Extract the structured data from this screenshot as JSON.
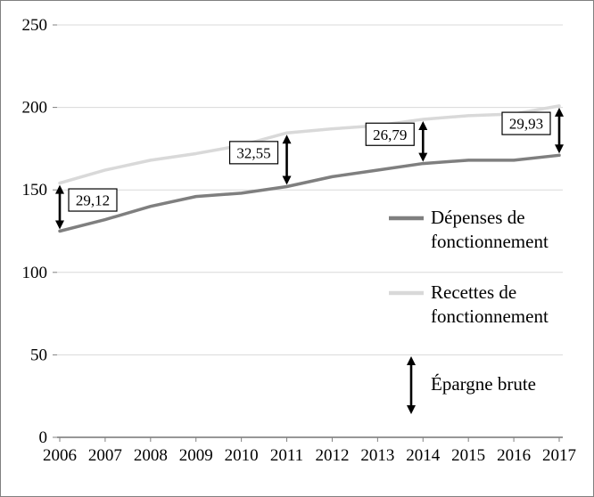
{
  "chart_data": {
    "type": "line",
    "title": "",
    "xlabel": "",
    "ylabel": "",
    "categories": [
      2006,
      2007,
      2008,
      2009,
      2010,
      2011,
      2012,
      2013,
      2014,
      2015,
      2016,
      2017
    ],
    "series": [
      {
        "name": "Dépenses de fonctionnement",
        "color": "#7f7f7f",
        "values": [
          125,
          132,
          140,
          146,
          148,
          152,
          158,
          162,
          166,
          168,
          168,
          171
        ]
      },
      {
        "name": "Recettes de fonctionnement",
        "color": "#d9d9d9",
        "values": [
          154.12,
          162,
          168,
          172,
          177,
          184.55,
          187,
          189,
          192.79,
          195,
          196,
          200.93
        ]
      }
    ],
    "annotations": [
      {
        "x": 2006,
        "label": "29,12",
        "side": "right"
      },
      {
        "x": 2011,
        "label": "32,55",
        "side": "left"
      },
      {
        "x": 2014,
        "label": "26,79",
        "side": "left"
      },
      {
        "x": 2017,
        "label": "29,93",
        "side": "left"
      }
    ],
    "legend": {
      "position": "inside-right",
      "items": [
        {
          "type": "line",
          "color": "#7f7f7f",
          "label": "Dépenses de fonctionnement"
        },
        {
          "type": "line",
          "color": "#d9d9d9",
          "label": "Recettes de fonctionnement"
        },
        {
          "type": "arrow",
          "label": "Épargne brute"
        }
      ]
    },
    "ylim": [
      0,
      250
    ],
    "yticks": [
      0,
      50,
      100,
      150,
      200,
      250
    ],
    "grid": true
  },
  "colors": {
    "grid": "#d9d9d9",
    "axis": "#808080",
    "axis_line": "#595959",
    "arrow": "#000000",
    "annotation_border": "#000000",
    "annotation_fill": "#ffffff",
    "background": "#ffffff",
    "frame_border": "#808080"
  }
}
